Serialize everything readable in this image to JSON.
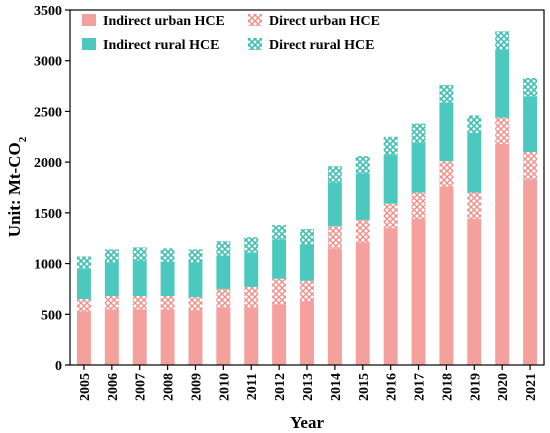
{
  "chart_data": {
    "type": "bar",
    "stacked": true,
    "xlabel": "Year",
    "ylabel_prefix": "Unit: Mt-CO",
    "ylabel_subscript": "2",
    "ylim": [
      0,
      3500
    ],
    "yticks": [
      0,
      500,
      1000,
      1500,
      2000,
      2500,
      3000,
      3500
    ],
    "ytick_labels": [
      "0",
      "500",
      "1000",
      "1500",
      "2000",
      "2500",
      "3000",
      "3500"
    ],
    "grid": false,
    "legend_position": "top-left",
    "categories": [
      "2005",
      "2006",
      "2007",
      "2008",
      "2009",
      "2010",
      "2011",
      "2012",
      "2013",
      "2014",
      "2015",
      "2016",
      "2017",
      "2018",
      "2019",
      "2020",
      "2021"
    ],
    "series": [
      {
        "name": "Indirect urban HCE",
        "color": "#f4a09c",
        "pattern": "solid",
        "values": [
          530,
          550,
          550,
          550,
          540,
          570,
          570,
          600,
          630,
          1150,
          1210,
          1350,
          1440,
          1760,
          1440,
          2180,
          1830
        ]
      },
      {
        "name": "Direct urban HCE",
        "color": "#f4a09c",
        "pattern": "cross",
        "values": [
          120,
          130,
          130,
          130,
          130,
          180,
          200,
          250,
          200,
          220,
          220,
          240,
          260,
          250,
          260,
          260,
          270
        ]
      },
      {
        "name": "Indirect rural HCE",
        "color": "#4cc9bf",
        "pattern": "solid",
        "values": [
          300,
          330,
          350,
          340,
          340,
          330,
          340,
          390,
          360,
          430,
          460,
          480,
          490,
          580,
          590,
          670,
          550
        ]
      },
      {
        "name": "Direct rural HCE",
        "color": "#4cc9bf",
        "pattern": "dots",
        "values": [
          120,
          130,
          130,
          130,
          130,
          140,
          150,
          140,
          150,
          160,
          170,
          180,
          190,
          170,
          170,
          180,
          180
        ]
      }
    ]
  }
}
